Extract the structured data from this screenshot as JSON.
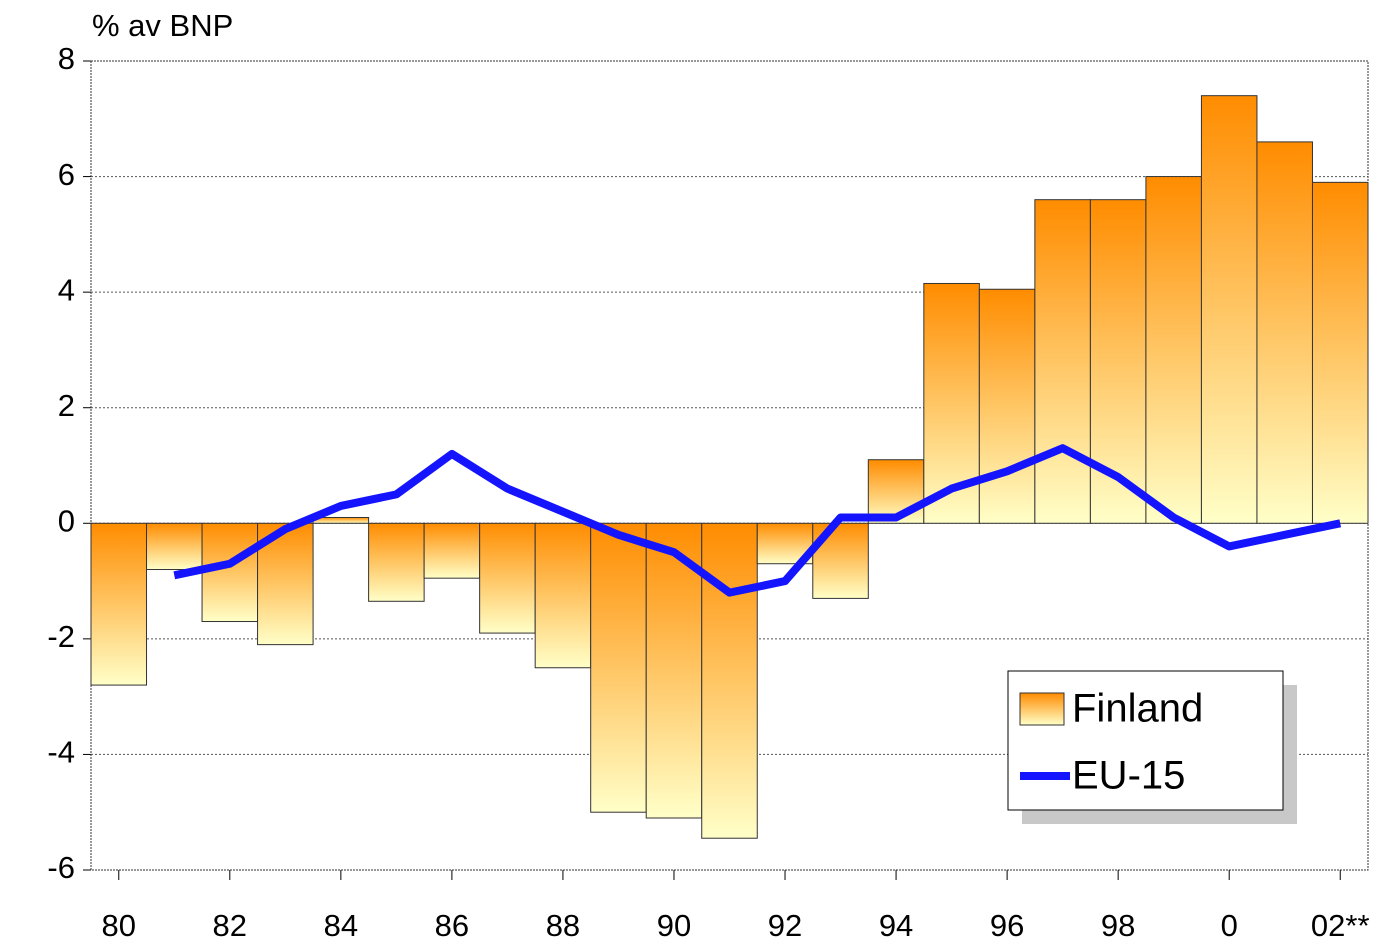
{
  "chart_data": {
    "type": "bar",
    "y_label": "% av BNP",
    "categories": [
      "80",
      null,
      "82",
      null,
      "84",
      null,
      "86",
      null,
      "88",
      null,
      "90",
      null,
      "92",
      null,
      "94",
      null,
      "96",
      null,
      "98",
      null,
      "0",
      null,
      "02**"
    ],
    "series": [
      {
        "name": "Finland",
        "type": "bar",
        "color": "#ff8c00",
        "values": [
          -2.8,
          -0.8,
          -1.7,
          -2.1,
          0.1,
          -1.35,
          -0.95,
          -1.9,
          -2.5,
          -5.0,
          -5.1,
          -5.45,
          -0.7,
          -1.3,
          1.1,
          4.15,
          4.05,
          5.6,
          5.6,
          6.0,
          7.4,
          6.6,
          5.9
        ]
      },
      {
        "name": "EU-15",
        "type": "line",
        "color": "#1414ff",
        "values": [
          null,
          -0.9,
          -0.7,
          -0.1,
          0.3,
          0.5,
          1.2,
          0.6,
          0.2,
          -0.2,
          -0.5,
          -1.2,
          -1.0,
          0.1,
          0.1,
          0.6,
          0.9,
          1.3,
          0.8,
          0.1,
          -0.4,
          -0.2,
          0.0
        ]
      }
    ],
    "ylim": [
      -6,
      8
    ],
    "yticks": [
      -6,
      -4,
      -2,
      0,
      2,
      4,
      6,
      8
    ],
    "grid": true,
    "legend": "lower right"
  }
}
